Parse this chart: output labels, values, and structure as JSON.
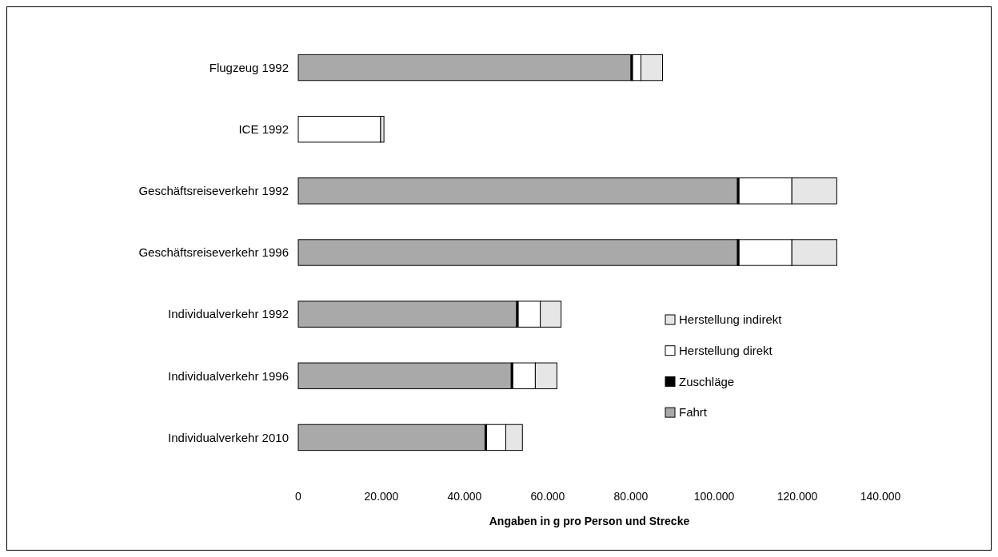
{
  "chart_data": {
    "type": "bar",
    "orientation": "horizontal",
    "stacked": true,
    "xlabel": "Angaben in g pro Person und Strecke",
    "categories": [
      "Flugzeug 1992",
      "ICE 1992",
      "Geschäftsreiseverkehr 1992",
      "Geschäftsreiseverkehr 1996",
      "Individualverkehr 1992",
      "Individualverkehr 1996",
      "Individualverkehr 2010"
    ],
    "series": [
      {
        "name": "Fahrt",
        "color": "#a9a9a9",
        "values": [
          80000,
          null,
          105600,
          105600,
          52500,
          51200,
          44900
        ]
      },
      {
        "name": "Zuschläge",
        "color": "#000000",
        "values": [
          400,
          null,
          400,
          400,
          400,
          400,
          400
        ]
      },
      {
        "name": "Herstellung direkt",
        "color": "#ffffff",
        "values": [
          2000,
          19800,
          12700,
          12700,
          5300,
          5400,
          4600
        ]
      },
      {
        "name": "Herstellung indirekt",
        "color": "#e6e6e6",
        "values": [
          5200,
          800,
          10800,
          10800,
          5000,
          5200,
          4000
        ]
      }
    ],
    "xlim": [
      0,
      140000
    ],
    "xticks": [
      0,
      {
        "value": 20000,
        "label": "20.000"
      },
      {
        "value": 40000,
        "label": "40.000"
      },
      {
        "value": 60000,
        "label": "60.000"
      },
      {
        "value": 80000,
        "label": "80.000"
      },
      {
        "value": 100000,
        "label": "100.000"
      },
      {
        "value": 120000,
        "label": "120.000"
      },
      {
        "value": 140000,
        "label": "140.000"
      }
    ],
    "legend": "bottom right"
  }
}
